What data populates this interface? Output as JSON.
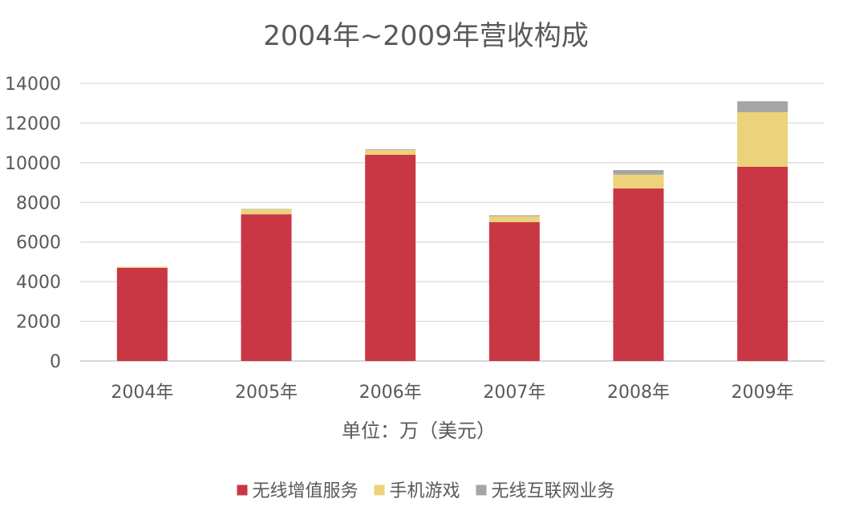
{
  "chart_data": {
    "type": "bar",
    "stacked": true,
    "title": "2004年~2009年营收构成",
    "xlabel": "单位：万（美元）",
    "ylabel": "",
    "categories": [
      "2004年",
      "2005年",
      "2006年",
      "2007年",
      "2008年",
      "2009年"
    ],
    "ylim": [
      0,
      14000
    ],
    "yticks": [
      "0",
      "2000",
      "4000",
      "6000",
      "8000",
      "10000",
      "12000",
      "14000"
    ],
    "grid": true,
    "legend_position": "bottom",
    "series": [
      {
        "name": "无线增值服务",
        "color": "#c93744",
        "values": [
          4700,
          7400,
          10400,
          7000,
          8700,
          9800
        ]
      },
      {
        "name": "手机游戏",
        "color": "#ecd27a",
        "values": [
          50,
          250,
          250,
          300,
          700,
          2750
        ]
      },
      {
        "name": "无线互联网业务",
        "color": "#a5a5a5",
        "values": [
          0,
          20,
          30,
          50,
          230,
          550
        ]
      }
    ]
  }
}
